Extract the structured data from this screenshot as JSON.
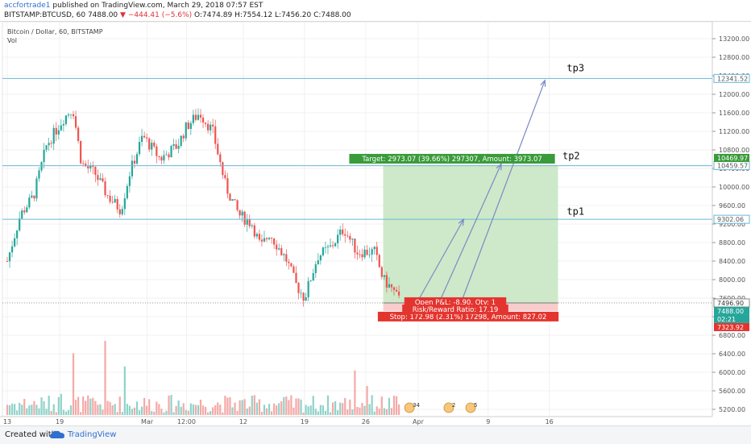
{
  "header": {
    "author": "accfortrade1",
    "published_text": " published on TradingView.com, March 29, 2018 07:57 EST",
    "symbol": "BITSTAMP:BTCUSD, 60",
    "last": "7488.00",
    "change": "−444.41 (−5.6%)",
    "ohlc": "O:7474.89  H:7554.12  L:7456.20  C:7488.00"
  },
  "legend": {
    "title": "Bitcoin / Dollar, 60, BITSTAMP",
    "vol": "Vol"
  },
  "footer": {
    "created_with": "Created with",
    "brand": "TradingView"
  },
  "colors": {
    "up": "#26a69a",
    "down": "#ef5350",
    "hline": "#6ab8d6",
    "profit_zone": "#cde9c9",
    "stop_zone": "#f8cccc",
    "target_label": "#3a9b3a",
    "stop_label": "#e3342f",
    "arrow": "#7b89c4"
  },
  "chart_data": {
    "type": "candlestick",
    "title": "Bitcoin / Dollar, 60, BITSTAMP",
    "ylim": [
      5000,
      13500
    ],
    "y_ticks": [
      5200,
      5600,
      6000,
      6400,
      6800,
      7200,
      7600,
      8000,
      8400,
      8800,
      9200,
      9600,
      10000,
      10400,
      10800,
      11200,
      11600,
      12000,
      12400,
      12800,
      13200
    ],
    "y_tick_labels": [
      "5200.00",
      "5600.00",
      "6000.00",
      "6400.00",
      "6800.00",
      "7200.00",
      "7600.00",
      "8000.00",
      "8400.00",
      "8800.00",
      "9200.00",
      "9600.00",
      "10000.00",
      "10400.00",
      "10800.00",
      "11200.00",
      "11600.00",
      "12000.00",
      "12400.00",
      "12800.00",
      "13200.00"
    ],
    "x_ticks": [
      {
        "label": "13",
        "day": 0
      },
      {
        "label": "19",
        "day": 6
      },
      {
        "label": "Mar",
        "day": 16
      },
      {
        "label": "12:00",
        "day": 20.5
      },
      {
        "label": "12",
        "day": 27
      },
      {
        "label": "19",
        "day": 34
      },
      {
        "label": "26",
        "day": 41
      },
      {
        "label": "Apr",
        "day": 47
      },
      {
        "label": "9",
        "day": 55
      },
      {
        "label": "16",
        "day": 62
      }
    ],
    "xlim": [
      -0.5,
      70.5
    ],
    "price_path": [
      [
        0,
        8400
      ],
      [
        1.5,
        9400
      ],
      [
        3,
        9800
      ],
      [
        4.5,
        10900
      ],
      [
        6.5,
        11500
      ],
      [
        7.5,
        11700
      ],
      [
        8.5,
        10500
      ],
      [
        10,
        10300
      ],
      [
        11.5,
        9800
      ],
      [
        13,
        9500
      ],
      [
        14,
        10300
      ],
      [
        15.5,
        11100
      ],
      [
        17.5,
        10600
      ],
      [
        19.5,
        10900
      ],
      [
        20.5,
        11300
      ],
      [
        22,
        11600
      ],
      [
        23.5,
        11200
      ],
      [
        25,
        10000
      ],
      [
        26.5,
        9400
      ],
      [
        28,
        9200
      ],
      [
        29,
        8700
      ],
      [
        30,
        9000
      ],
      [
        31,
        8700
      ],
      [
        32,
        8400
      ],
      [
        33,
        7900
      ],
      [
        34,
        7600
      ],
      [
        35.5,
        8500
      ],
      [
        37,
        8700
      ],
      [
        38.5,
        9100
      ],
      [
        40,
        8600
      ],
      [
        42,
        8600
      ],
      [
        43,
        8000
      ],
      [
        44,
        7800
      ],
      [
        45,
        7500
      ]
    ],
    "volume_rel": "low, with occasional spikes",
    "horizontal_levels": [
      {
        "price": 12341.52,
        "label": "12341.52"
      },
      {
        "price": 10459.57,
        "label": "10459.57"
      },
      {
        "price": 9302.06,
        "label": "9302.06"
      }
    ],
    "price_labels": [
      {
        "price": 10469.97,
        "text": "10469.97",
        "color": "#3a9b3a"
      },
      {
        "price": 7496.9,
        "text": "7496.90",
        "color": "#ffffff",
        "text_color": "#333333",
        "border": true
      },
      {
        "price": 7488.0,
        "text": "7488.00",
        "color": "#26a69a"
      },
      {
        "price": 7350.0,
        "text": "02:21",
        "color": "#26a69a"
      },
      {
        "price": 7323.92,
        "text": "7323.92",
        "color": "#e3342f"
      }
    ],
    "position": {
      "entry": 7496.9,
      "target": 10469.97,
      "stop": 7323.92,
      "day_start": 43,
      "day_end": 63,
      "target_text": "Target: 2973.07 (39.66%) 297307, Amount: 3973.07",
      "stop_text": "Stop: 172.98 (2.31%) 17298, Amount: 827.02",
      "open_pl_text": "Open P&L: -8.90, Qty: 1",
      "rr_text": "Risk/Reward Ratio: 17.19"
    },
    "arrows": [
      {
        "from": [
          47,
          7550
        ],
        "to": [
          52.2,
          9300
        ]
      },
      {
        "from": [
          49.5,
          7550
        ],
        "to": [
          56.5,
          10500
        ]
      },
      {
        "from": [
          52,
          7550
        ],
        "to": [
          61.5,
          12300
        ]
      }
    ],
    "annotations": [
      {
        "text": "tp1",
        "day": 64,
        "price": 9400
      },
      {
        "text": "tp2",
        "day": 63.5,
        "price": 10600
      },
      {
        "text": "tp3",
        "day": 64,
        "price": 12500
      }
    ],
    "event_markers": [
      {
        "text": "34",
        "day": 46
      },
      {
        "text": "2",
        "day": 50.5
      },
      {
        "text": "5",
        "day": 53
      }
    ]
  }
}
